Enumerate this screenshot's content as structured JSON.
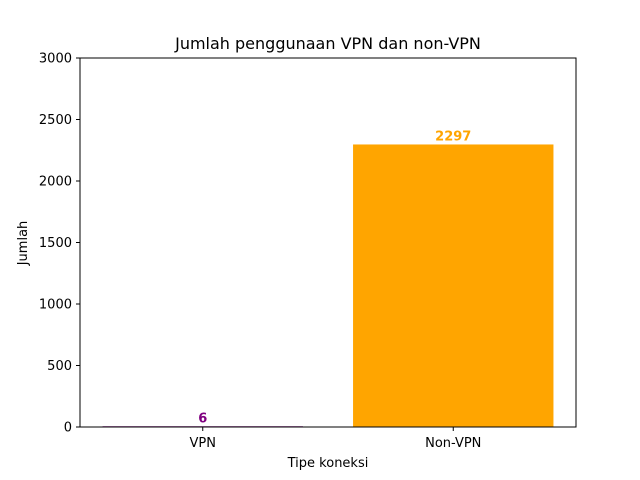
{
  "chart_data": {
    "type": "bar",
    "title": "Jumlah penggunaan VPN dan non-VPN",
    "xlabel": "Tipe koneksi",
    "ylabel": "Jumlah",
    "categories": [
      "VPN",
      "Non-VPN"
    ],
    "values": [
      6,
      2297
    ],
    "data_labels": [
      "6",
      "2297"
    ],
    "colors": [
      "#800080",
      "#ffa500"
    ],
    "ylim": [
      0,
      3000
    ],
    "yticks": [
      0,
      500,
      1000,
      1500,
      2000,
      2500,
      3000
    ],
    "grid": false,
    "legend": "none"
  }
}
